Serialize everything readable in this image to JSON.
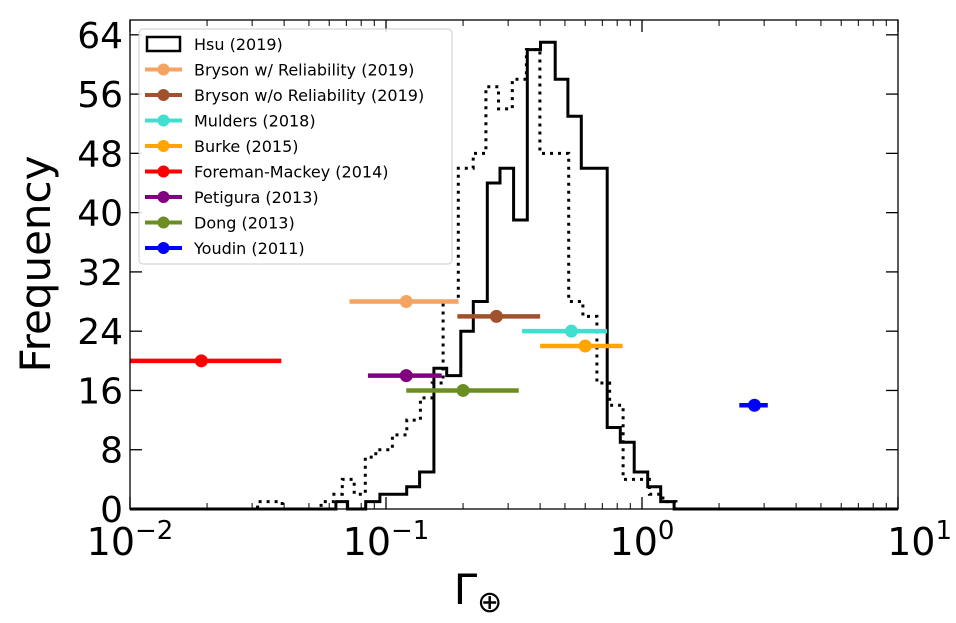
{
  "chart_data": {
    "type": "histogram",
    "xlabel_main": "Γ",
    "xlabel_sub": "⊕",
    "ylabel": "Frequency",
    "xscale": "log",
    "xlim": [
      0.01,
      10
    ],
    "ylim": [
      0,
      66
    ],
    "x_ticks": [
      {
        "value": 0.01,
        "base": "10",
        "exp": "−2"
      },
      {
        "value": 0.1,
        "base": "10",
        "exp": "−1"
      },
      {
        "value": 1,
        "base": "10",
        "exp": "0"
      },
      {
        "value": 10,
        "base": "10",
        "exp": "1"
      }
    ],
    "y_ticks": [
      {
        "value": 0,
        "label": "0"
      },
      {
        "value": 8,
        "label": "8"
      },
      {
        "value": 16,
        "label": "16"
      },
      {
        "value": 24,
        "label": "24"
      },
      {
        "value": 32,
        "label": "32"
      },
      {
        "value": 40,
        "label": "40"
      },
      {
        "value": 48,
        "label": "48"
      },
      {
        "value": 56,
        "label": "56"
      },
      {
        "value": 64,
        "label": "64"
      }
    ],
    "histogram_solid": {
      "name": "Hsu (2019)",
      "bin_edges": [
        0.01,
        0.0637,
        0.0708,
        0.0833,
        0.0947,
        0.1066,
        0.1205,
        0.1353,
        0.1538,
        0.1727,
        0.1959,
        0.2192,
        0.2488,
        0.2787,
        0.3151,
        0.3565,
        0.4012,
        0.4579,
        0.5135,
        0.5792,
        0.7311,
        0.8226,
        0.9323,
        1.0525,
        1.1827,
        1.3346,
        1.506,
        10
      ],
      "counts": [
        0,
        1,
        0,
        1,
        2,
        2,
        3,
        5,
        19,
        18,
        24,
        28,
        44,
        46,
        39,
        62,
        63,
        58,
        53,
        46,
        11,
        9,
        5,
        3,
        1,
        0,
        0
      ]
    },
    "histogram_dotted": {
      "bin_edges": [
        0.01,
        0.0315,
        0.0393,
        0.0558,
        0.0626,
        0.0675,
        0.0751,
        0.083,
        0.0912,
        0.1059,
        0.1206,
        0.1363,
        0.1515,
        0.1672,
        0.1916,
        0.2191,
        0.2455,
        0.275,
        0.3115,
        0.3535,
        0.3992,
        0.5171,
        0.5878,
        0.6666,
        0.7475,
        0.8439,
        1.069,
        1.2065,
        1.3582,
        10
      ],
      "counts": [
        0,
        1,
        0,
        1,
        2,
        4,
        2,
        7,
        8,
        10,
        12,
        15,
        17,
        28,
        46,
        48,
        57,
        54,
        58,
        62,
        48,
        28,
        26,
        17,
        14,
        4,
        2,
        1,
        0
      ]
    },
    "errorbars": [
      {
        "name": "Bryson w/ Reliability (2019)",
        "color": "#f4a460",
        "x": 0.12,
        "xmin": 0.072,
        "xmax": 0.192,
        "y": 28
      },
      {
        "name": "Bryson w/o Reliability (2019)",
        "color": "#a0522d",
        "x": 0.27,
        "xmin": 0.19,
        "xmax": 0.4,
        "y": 26
      },
      {
        "name": "Mulders (2018)",
        "color": "#40e0d0",
        "x": 0.53,
        "xmin": 0.34,
        "xmax": 0.73,
        "y": 24
      },
      {
        "name": "Burke (2015)",
        "color": "#ffa500",
        "x": 0.6,
        "xmin": 0.4,
        "xmax": 0.84,
        "y": 22
      },
      {
        "name": "Foreman-Mackey (2014)",
        "color": "#ff0000",
        "x": 0.019,
        "xmin": 0.0095,
        "xmax": 0.039,
        "y": 20
      },
      {
        "name": "Petigura (2013)",
        "color": "#800080",
        "x": 0.12,
        "xmin": 0.085,
        "xmax": 0.165,
        "y": 18
      },
      {
        "name": "Dong (2013)",
        "color": "#6b8e23",
        "x": 0.2,
        "xmin": 0.12,
        "xmax": 0.33,
        "y": 16
      },
      {
        "name": "Youdin (2011)",
        "color": "#0000ff",
        "x": 2.75,
        "xmin": 2.4,
        "xmax": 3.1,
        "y": 14
      }
    ],
    "legend": {
      "placement": "top-left",
      "entries": [
        {
          "label": "Hsu (2019)",
          "kind": "box"
        },
        {
          "label": "Bryson w/ Reliability (2019)",
          "kind": "line",
          "color": "#f4a460"
        },
        {
          "label": "Bryson w/o Reliability (2019)",
          "kind": "line",
          "color": "#a0522d"
        },
        {
          "label": "Mulders (2018)",
          "kind": "line",
          "color": "#40e0d0"
        },
        {
          "label": "Burke (2015)",
          "kind": "line",
          "color": "#ffa500"
        },
        {
          "label": "Foreman-Mackey (2014)",
          "kind": "line",
          "color": "#ff0000"
        },
        {
          "label": "Petigura (2013)",
          "kind": "line",
          "color": "#800080"
        },
        {
          "label": "Dong (2013)",
          "kind": "line",
          "color": "#6b8e23"
        },
        {
          "label": "Youdin (2011)",
          "kind": "line",
          "color": "#0000ff"
        }
      ]
    },
    "grid": false
  }
}
